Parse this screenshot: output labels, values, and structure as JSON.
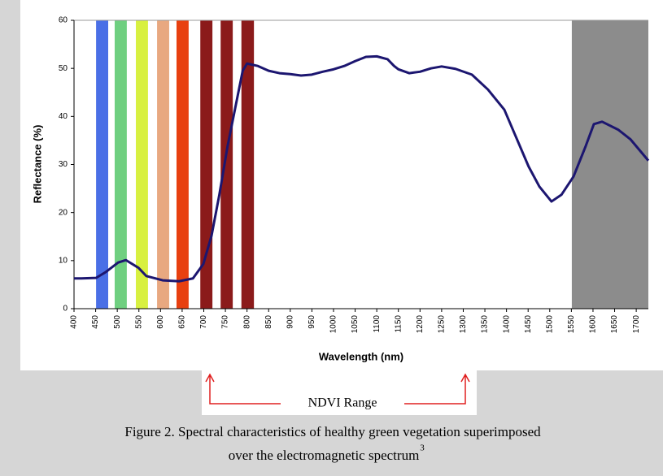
{
  "chart_data": {
    "type": "line",
    "xlabel": "Wavelength (nm)",
    "ylabel": "Reflectance (%)",
    "xlim": [
      400,
      1728
    ],
    "ylim": [
      0,
      60
    ],
    "xticks": [
      400,
      450,
      500,
      550,
      600,
      650,
      700,
      750,
      800,
      850,
      900,
      950,
      1000,
      1050,
      1100,
      1150,
      1200,
      1250,
      1300,
      1350,
      1400,
      1450,
      1500,
      1550,
      1600,
      1650,
      1700
    ],
    "yticks": [
      0,
      10,
      20,
      30,
      40,
      50,
      60
    ],
    "bands": [
      {
        "start": 451,
        "end": 479,
        "color": "#4a6fe6"
      },
      {
        "start": 494,
        "end": 522,
        "color": "#6fcf80"
      },
      {
        "start": 543,
        "end": 571,
        "color": "#d8f040"
      },
      {
        "start": 592,
        "end": 620,
        "color": "#e8a880"
      },
      {
        "start": 637,
        "end": 665,
        "color": "#e84010"
      },
      {
        "start": 692,
        "end": 720,
        "color": "#8b1a1a"
      },
      {
        "start": 739,
        "end": 767,
        "color": "#8b1a1a"
      },
      {
        "start": 787,
        "end": 816,
        "color": "#8b1a1a"
      },
      {
        "start": 1551,
        "end": 1728,
        "color": "#8c8c8c"
      }
    ],
    "x": [
      400,
      417,
      451,
      473,
      502,
      520,
      549,
      567,
      605,
      643,
      675,
      699,
      718,
      736,
      755,
      790,
      800,
      825,
      850,
      875,
      900,
      925,
      950,
      975,
      1000,
      1025,
      1050,
      1075,
      1100,
      1125,
      1140,
      1150,
      1175,
      1200,
      1225,
      1250,
      1282,
      1320,
      1357,
      1395,
      1423,
      1451,
      1476,
      1504,
      1527,
      1555,
      1583,
      1602,
      1621,
      1659,
      1687,
      1728
    ],
    "series": [
      {
        "color": "#1c1670",
        "values": [
          6.3,
          6.3,
          6.4,
          7.6,
          9.6,
          10.1,
          8.5,
          6.8,
          5.9,
          5.7,
          6.3,
          9.3,
          15.2,
          23.7,
          33.8,
          49.5,
          51,
          50.5,
          49.5,
          49,
          48.8,
          48.5,
          48.7,
          49.3,
          49.8,
          50.5,
          51.5,
          52.4,
          52.5,
          51.9,
          50.5,
          49.8,
          49,
          49.3,
          50,
          50.4,
          49.9,
          48.7,
          45.6,
          41.4,
          35.5,
          29.6,
          25.4,
          22.3,
          23.7,
          27.5,
          33.8,
          38.4,
          38.9,
          37.2,
          35.2,
          30.8
        ]
      }
    ]
  },
  "annotation": "NDVI Range",
  "caption": {
    "line1": "Figure 2.  Spectral characteristics of healthy green vegetation superimposed",
    "line2": "over the electromagnetic spectrum",
    "superscript": "3"
  }
}
